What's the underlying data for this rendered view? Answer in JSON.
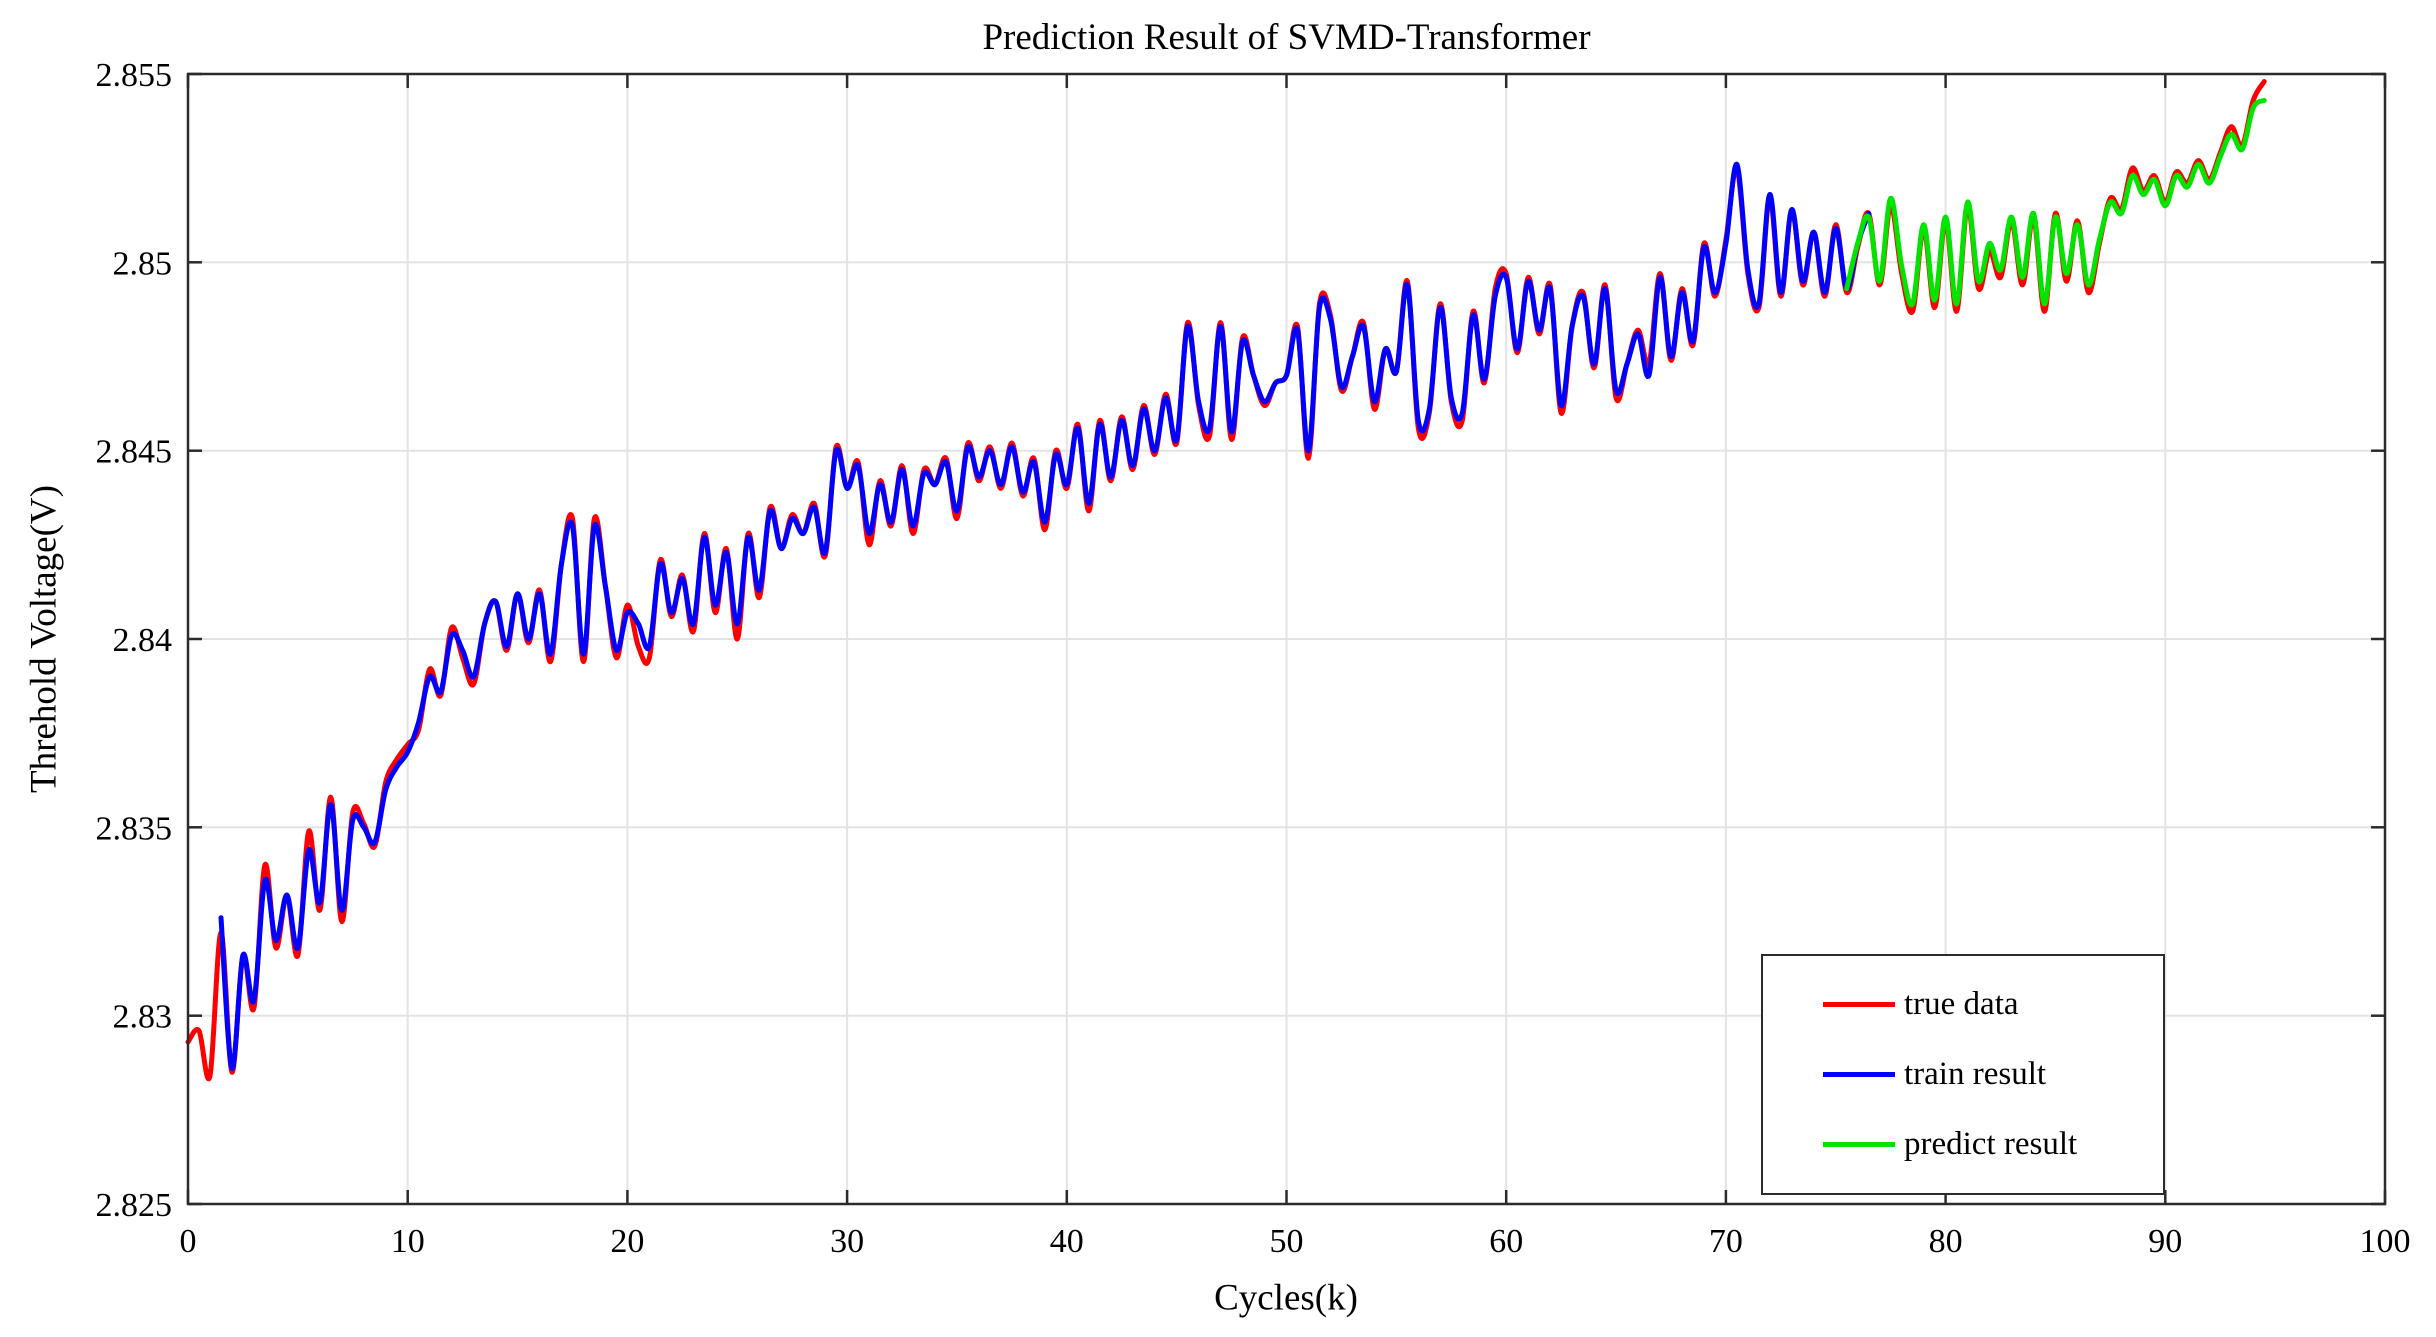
{
  "figure": {
    "background": "#ffffff",
    "axis_color": "#2b2b2b",
    "grid_color": "#e3e3e3"
  },
  "chart_data": {
    "type": "line",
    "title": "Prediction Result of SVMD-Transformer",
    "xlabel": "Cycles(k)",
    "ylabel": "Threhold Voltage(V)",
    "xlim": [
      0,
      100
    ],
    "ylim": [
      2.825,
      2.855
    ],
    "grid": true,
    "box": true,
    "xticks": [
      0,
      10,
      20,
      30,
      40,
      50,
      60,
      70,
      80,
      90,
      100
    ],
    "xtick_labels": [
      "0",
      "10",
      "20",
      "30",
      "40",
      "50",
      "60",
      "70",
      "80",
      "90",
      "100"
    ],
    "yticks": [
      2.825,
      2.83,
      2.835,
      2.84,
      2.845,
      2.85,
      2.855
    ],
    "ytick_labels": [
      "2.825",
      "2.83",
      "2.835",
      "2.84",
      "2.845",
      "2.85",
      "2.855"
    ],
    "legend": {
      "position": "inside lower right",
      "entries": [
        {
          "label": "true data",
          "color": "#ff0000"
        },
        {
          "label": "train result",
          "color": "#0000ff"
        },
        {
          "label": "predict result",
          "color": "#00e400"
        }
      ]
    },
    "series": [
      {
        "name": "true data",
        "color": "#ff0000",
        "x_start": 0.0,
        "x_step": 0.5,
        "y": [
          2.8293,
          2.8296,
          2.8284,
          2.8322,
          2.8285,
          2.8316,
          2.8302,
          2.834,
          2.8318,
          2.8332,
          2.8316,
          2.8349,
          2.8328,
          2.8358,
          2.8325,
          2.8354,
          2.8351,
          2.8345,
          2.8362,
          2.8368,
          2.8372,
          2.8376,
          2.8392,
          2.8385,
          2.8403,
          2.8395,
          2.8388,
          2.8404,
          2.841,
          2.8397,
          2.8412,
          2.8399,
          2.8413,
          2.8394,
          2.842,
          2.8432,
          2.8394,
          2.8432,
          2.8414,
          2.8395,
          2.8409,
          2.8398,
          2.8395,
          2.8421,
          2.8406,
          2.8417,
          2.8402,
          2.8428,
          2.8407,
          2.8424,
          2.84,
          2.8428,
          2.8411,
          2.8435,
          2.8424,
          2.8433,
          2.8428,
          2.8436,
          2.8422,
          2.8451,
          2.844,
          2.8447,
          2.8425,
          2.8442,
          2.843,
          2.8446,
          2.8428,
          2.8445,
          2.8441,
          2.8448,
          2.8432,
          2.8452,
          2.8442,
          2.8451,
          2.844,
          2.8452,
          2.8438,
          2.8448,
          2.8429,
          2.845,
          2.844,
          2.8457,
          2.8434,
          2.8458,
          2.8442,
          2.8459,
          2.8445,
          2.8462,
          2.8449,
          2.8465,
          2.8452,
          2.8484,
          2.8462,
          2.8454,
          2.8484,
          2.8453,
          2.848,
          2.847,
          2.8462,
          2.8468,
          2.847,
          2.8483,
          2.8448,
          2.8489,
          2.8486,
          2.8466,
          2.8475,
          2.8484,
          2.8461,
          2.8477,
          2.8471,
          2.8495,
          2.8456,
          2.846,
          2.8489,
          2.8463,
          2.8458,
          2.8487,
          2.8468,
          2.8493,
          2.8497,
          2.8476,
          2.8496,
          2.8481,
          2.8494,
          2.846,
          2.8483,
          2.8492,
          2.8472,
          2.8494,
          2.8464,
          2.8473,
          2.8482,
          2.8473,
          2.8497,
          2.8474,
          2.8493,
          2.8478,
          2.8505,
          2.8491,
          2.8506,
          2.8525,
          2.8497,
          2.8488,
          2.8517,
          2.8491,
          2.8514,
          2.8494,
          2.8508,
          2.8491,
          2.851,
          2.8492,
          2.8504,
          2.8513,
          2.8494,
          2.8515,
          2.8497,
          2.8487,
          2.8509,
          2.8488,
          2.8511,
          2.8487,
          2.8515,
          2.8493,
          2.8503,
          2.8496,
          2.8511,
          2.8494,
          2.8512,
          2.8487,
          2.8513,
          2.8495,
          2.8511,
          2.8492,
          2.8505,
          2.8517,
          2.8514,
          2.8525,
          2.8519,
          2.8523,
          2.8516,
          2.8524,
          2.8521,
          2.8527,
          2.8522,
          2.8529,
          2.8536,
          2.8531,
          2.8543,
          2.8548
        ]
      },
      {
        "name": "train result",
        "color": "#0000ff",
        "x_start": 1.5,
        "x_step": 0.5,
        "y": [
          2.8326,
          2.8286,
          2.8316,
          2.8304,
          2.8336,
          2.832,
          2.8332,
          2.8318,
          2.8344,
          2.833,
          2.8356,
          2.8328,
          2.8352,
          2.835,
          2.8346,
          2.836,
          2.8366,
          2.837,
          2.8378,
          2.839,
          2.8386,
          2.8401,
          2.8397,
          2.839,
          2.8404,
          2.841,
          2.8398,
          2.8412,
          2.84,
          2.8412,
          2.8396,
          2.842,
          2.843,
          2.8396,
          2.843,
          2.8414,
          2.8397,
          2.8407,
          2.8404,
          2.8398,
          2.842,
          2.8407,
          2.8416,
          2.8404,
          2.8427,
          2.8409,
          2.8423,
          2.8404,
          2.8427,
          2.8413,
          2.8434,
          2.8424,
          2.8432,
          2.8428,
          2.8435,
          2.8423,
          2.845,
          2.844,
          2.8446,
          2.8428,
          2.8441,
          2.8431,
          2.8445,
          2.843,
          2.8444,
          2.8441,
          2.8447,
          2.8434,
          2.8451,
          2.8443,
          2.845,
          2.8441,
          2.8451,
          2.8439,
          2.8447,
          2.8431,
          2.8449,
          2.8441,
          2.8456,
          2.8436,
          2.8457,
          2.8443,
          2.8458,
          2.8446,
          2.8461,
          2.845,
          2.8464,
          2.8453,
          2.8483,
          2.8463,
          2.8456,
          2.8483,
          2.8455,
          2.8479,
          2.847,
          2.8463,
          2.8468,
          2.847,
          2.8482,
          2.845,
          2.8488,
          2.8485,
          2.8467,
          2.8475,
          2.8483,
          2.8463,
          2.8477,
          2.8471,
          2.8494,
          2.8458,
          2.8461,
          2.8488,
          2.8464,
          2.846,
          2.8486,
          2.8469,
          2.8491,
          2.8496,
          2.8477,
          2.8495,
          2.8482,
          2.8493,
          2.8462,
          2.8483,
          2.8491,
          2.8473,
          2.8493,
          2.8466,
          2.8473,
          2.8481,
          2.847,
          2.8496,
          2.8475,
          2.8492,
          2.8479,
          2.8504,
          2.8492,
          2.8505,
          2.8526,
          2.8498,
          2.8489,
          2.8518,
          2.8492,
          2.8514,
          2.8495,
          2.8508,
          2.8492,
          2.8509,
          2.8493,
          2.8505,
          2.8513
        ]
      },
      {
        "name": "predict result",
        "color": "#00e400",
        "x_start": 75.5,
        "x_step": 0.5,
        "y": [
          2.8493,
          2.8505,
          2.8512,
          2.8495,
          2.8517,
          2.8499,
          2.8489,
          2.851,
          2.849,
          2.8512,
          2.8489,
          2.8516,
          2.8495,
          2.8505,
          2.8498,
          2.8512,
          2.8496,
          2.8513,
          2.8489,
          2.8512,
          2.8497,
          2.851,
          2.8494,
          2.8506,
          2.8516,
          2.8513,
          2.8523,
          2.8518,
          2.8522,
          2.8515,
          2.8523,
          2.852,
          2.8526,
          2.8521,
          2.8528,
          2.8534,
          2.853,
          2.8541,
          2.8543
        ]
      }
    ]
  }
}
